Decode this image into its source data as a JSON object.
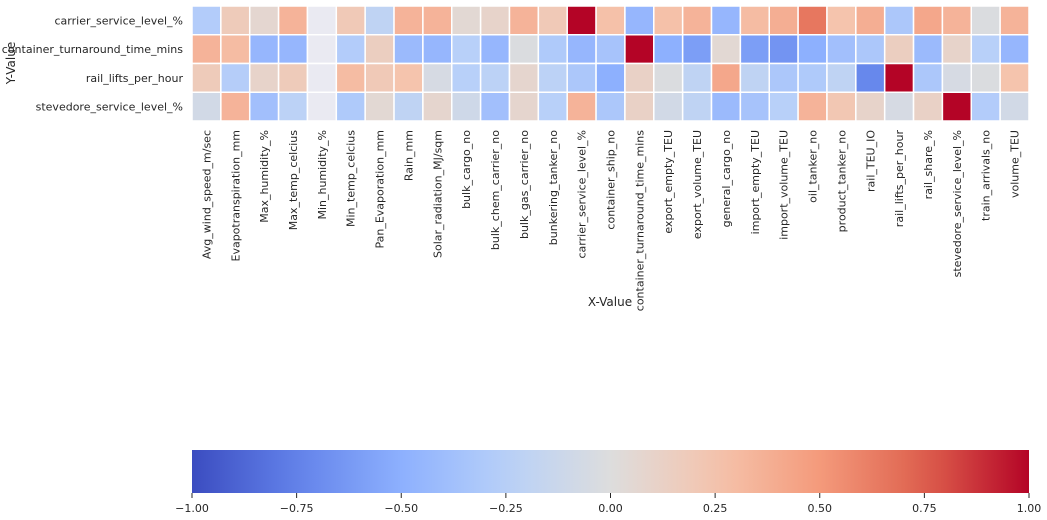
{
  "chart_data": {
    "type": "heatmap",
    "title": "",
    "xlabel": "X-Value",
    "ylabel": "Y-Value",
    "x": [
      "Avg_wind_speed_m/sec",
      "Evapotranspiration_mm",
      "Max_humidity_%",
      "Max_temp_celcius",
      "Min_humidity_%",
      "Min_temp_celcius",
      "Pan_Evaporation_mm",
      "Rain_mm",
      "Solar_radiation_MJ/sqm",
      "bulk_cargo_no",
      "bulk_chem_carrier_no",
      "bulk_gas_carrier_no",
      "bunkering_tanker_no",
      "carrier_service_level_%",
      "container_ship_no",
      "container_turnaround_time_mins",
      "export_empty_TEU",
      "export_volume_TEU",
      "general_cargo_no",
      "import_empty_TEU",
      "import_volume_TEU",
      "oil_tanker_no",
      "product_tanker_no",
      "rail_TEU_IO",
      "rail_lifts_per_hour",
      "rail_share_%",
      "stevedore_service_level_%",
      "train_arrivals_no",
      "volume_TEU"
    ],
    "y": [
      "carrier_service_level_%",
      "container_turnaround_time_mins",
      "rail_lifts_per_hour",
      "stevedore_service_level_%"
    ],
    "values": [
      [
        -0.28,
        0.18,
        0.07,
        0.35,
        null,
        0.2,
        -0.2,
        0.35,
        0.35,
        0.05,
        0.1,
        0.35,
        0.2,
        1.0,
        0.27,
        -0.45,
        0.27,
        0.35,
        -0.45,
        0.3,
        0.38,
        0.65,
        0.25,
        0.38,
        -0.32,
        0.42,
        0.35,
        -0.02,
        0.35
      ],
      [
        0.35,
        0.3,
        -0.45,
        -0.45,
        null,
        -0.28,
        0.15,
        -0.42,
        -0.45,
        -0.25,
        -0.45,
        -0.02,
        -0.3,
        -0.45,
        -0.35,
        1.0,
        -0.5,
        -0.6,
        0.05,
        -0.6,
        -0.65,
        -0.5,
        -0.38,
        -0.32,
        0.15,
        -0.42,
        0.1,
        -0.25,
        -0.45
      ],
      [
        0.18,
        -0.27,
        0.1,
        0.18,
        null,
        0.3,
        0.2,
        0.25,
        -0.05,
        -0.25,
        -0.22,
        0.08,
        -0.22,
        -0.32,
        -0.5,
        0.12,
        -0.02,
        -0.2,
        0.42,
        -0.2,
        -0.32,
        -0.3,
        -0.2,
        -0.72,
        1.0,
        -0.32,
        -0.05,
        -0.02,
        0.25
      ],
      [
        -0.08,
        0.35,
        -0.38,
        -0.22,
        null,
        -0.3,
        0.05,
        -0.2,
        0.08,
        -0.1,
        -0.38,
        0.08,
        -0.25,
        0.35,
        -0.32,
        0.12,
        -0.08,
        -0.2,
        -0.42,
        -0.35,
        -0.25,
        0.35,
        0.22,
        0.1,
        -0.05,
        0.12,
        1.0,
        -0.28,
        -0.08
      ]
    ],
    "vmin": -1.0,
    "vmax": 1.0,
    "colormap": "coolwarm",
    "missing_color": "#eaeaf2",
    "colorbar": {
      "orientation": "horizontal",
      "placement": "bottom",
      "ticks": [
        -1.0,
        -0.75,
        -0.5,
        -0.25,
        0.0,
        0.25,
        0.5,
        0.75,
        1.0
      ],
      "tick_labels": [
        "−1.00",
        "−0.75",
        "−0.50",
        "−0.25",
        "0.00",
        "0.25",
        "0.50",
        "0.75",
        "1.00"
      ]
    },
    "grid": false
  }
}
